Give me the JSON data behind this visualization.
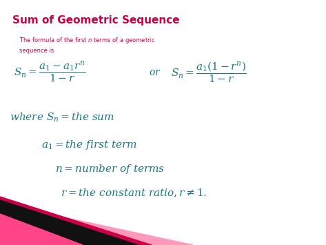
{
  "title": "Sum of Geometric Sequence",
  "title_color": "#cc0044",
  "subtitle_color": "#cc0044",
  "bg_color": "#ffffff",
  "formula_color": "#1a7a8a",
  "corner_color1": "#cc0044",
  "corner_color2": "#ff99bb",
  "corner_color3": "#111111"
}
